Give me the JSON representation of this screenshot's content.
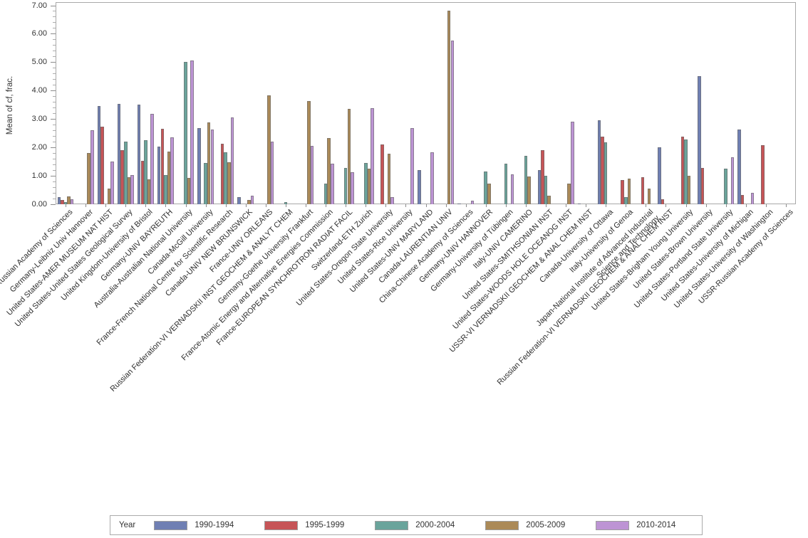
{
  "y_axis": {
    "title": "Mean of cf, frac.",
    "ticks": [
      "0.00",
      "1.00",
      "2.00",
      "3.00",
      "4.00",
      "5.00",
      "6.00",
      "7.00"
    ]
  },
  "legend": {
    "title": "Year"
  },
  "chart_data": {
    "type": "bar",
    "title": "",
    "xlabel": "",
    "ylabel": "Mean of cf, frac.",
    "ylim": [
      0,
      7
    ],
    "y_tick_step": 1,
    "y_minor_tick_step": 0.2,
    "grid": false,
    "legend_position": "bottom",
    "legend_title": "Year",
    "categories": [
      "Russian Federation-Russian Academy of Sciences",
      "Germany-Leibniz Univ Hannover",
      "United States-AMER MUSEUM NAT HIST",
      "United States-United States Geological Survey",
      "United Kingdom-University of Bristol",
      "Germany-UNIV BAYREUTH",
      "Australia-Australian National University",
      "Canada-McGill University",
      "France-French National Centre for Scientific Research",
      "Canada-UNIV NEW BRUNSWICK",
      "France-UNIV ORLEANS",
      "Russian Federation-VI VERNADSKII INST GEOCHEM & ANALYT CHEM",
      "Germany-Goethe University Frankfurt",
      "France-Atomic Energy and Alternative Energies Commission",
      "France-EUROPEAN SYNCHROTRON RADIAT FACIL",
      "Switzerland-ETH Zurich",
      "United States-Oregon State University",
      "United States-Rice University",
      "United States-UNIV MARYLAND",
      "Canada-LAURENTIAN UNIV",
      "China-Chinese Academy of Sciences",
      "Germany-UNIV HANNOVER",
      "Germany-University of Tübingen",
      "Italy-UNIV CAMERINO",
      "United States-SMITHSONIAN INST",
      "United States-WOODS HOLE OCEANOG INST",
      "USSR-VI VERNADSKII GEOCHEM & ANAL CHEM INST",
      "Canada-University of Ottawa",
      "Italy-University of Genoa",
      "Japan-National Institute of Advanced Industrial\nScience and Technology",
      "Russian Federation-VI VERNADSKII GEOCHEM & ANAL CHEM INST",
      "United States-Brigham Young University",
      "United States-Brown University",
      "United States-Portland State University",
      "United States-University of Michigan",
      "United States-University of Washington",
      "USSR-Russian Academy of Sciences"
    ],
    "series": [
      {
        "name": "1990-1994",
        "color": "#6f7fb3",
        "values": [
          0.25,
          0,
          3.45,
          3.52,
          3.5,
          2.02,
          0,
          2.67,
          0,
          0.24,
          0,
          0,
          0,
          0,
          0,
          0,
          0,
          0,
          1.19,
          0,
          0.03,
          0,
          0,
          0,
          1.2,
          0,
          0.03,
          2.96,
          0,
          0,
          2.0,
          0,
          4.5,
          0,
          2.64,
          0,
          0
        ]
      },
      {
        "name": "1995-1999",
        "color": "#c65457",
        "values": [
          0.15,
          0,
          2.73,
          1.9,
          1.53,
          2.66,
          0,
          0,
          2.13,
          0,
          0,
          0,
          0,
          0,
          0,
          0,
          2.11,
          0,
          0,
          0,
          0,
          0,
          0,
          0,
          1.9,
          0,
          0,
          2.39,
          0.84,
          0.96,
          0.18,
          2.38,
          1.27,
          0,
          0.33,
          2.07,
          0
        ]
      },
      {
        "name": "2000-2004",
        "color": "#6aa49b",
        "values": [
          0.08,
          0,
          0,
          2.21,
          2.25,
          1.02,
          5.0,
          1.45,
          1.82,
          0,
          0,
          0.07,
          0,
          0.73,
          1.27,
          1.46,
          0,
          0,
          0,
          0,
          0,
          1.15,
          1.43,
          1.7,
          1.01,
          0,
          0,
          2.18,
          0.24,
          0,
          0,
          2.28,
          0,
          1.25,
          0,
          0,
          0
        ]
      },
      {
        "name": "2005-2009",
        "color": "#ab8a58",
        "values": [
          0.28,
          1.8,
          0.55,
          0.95,
          0.88,
          1.85,
          0.92,
          2.89,
          1.48,
          0.14,
          3.82,
          0,
          3.63,
          2.33,
          3.35,
          1.25,
          1.78,
          0,
          0,
          6.8,
          0,
          0.72,
          0,
          0.97,
          0.3,
          0.72,
          0,
          0,
          0.89,
          0.54,
          0,
          1.01,
          0,
          0,
          0,
          0,
          0
        ]
      },
      {
        "name": "2010-2014",
        "color": "#bd94d4",
        "values": [
          0.18,
          2.6,
          1.5,
          1.02,
          3.18,
          2.35,
          5.05,
          2.64,
          3.05,
          0.3,
          2.2,
          0,
          2.05,
          1.43,
          1.13,
          3.38,
          0.25,
          2.69,
          1.83,
          5.76,
          0.12,
          0,
          1.05,
          0,
          0,
          2.91,
          0,
          0,
          0,
          0,
          0,
          0,
          0,
          1.65,
          0.4,
          0,
          0
        ]
      }
    ]
  }
}
